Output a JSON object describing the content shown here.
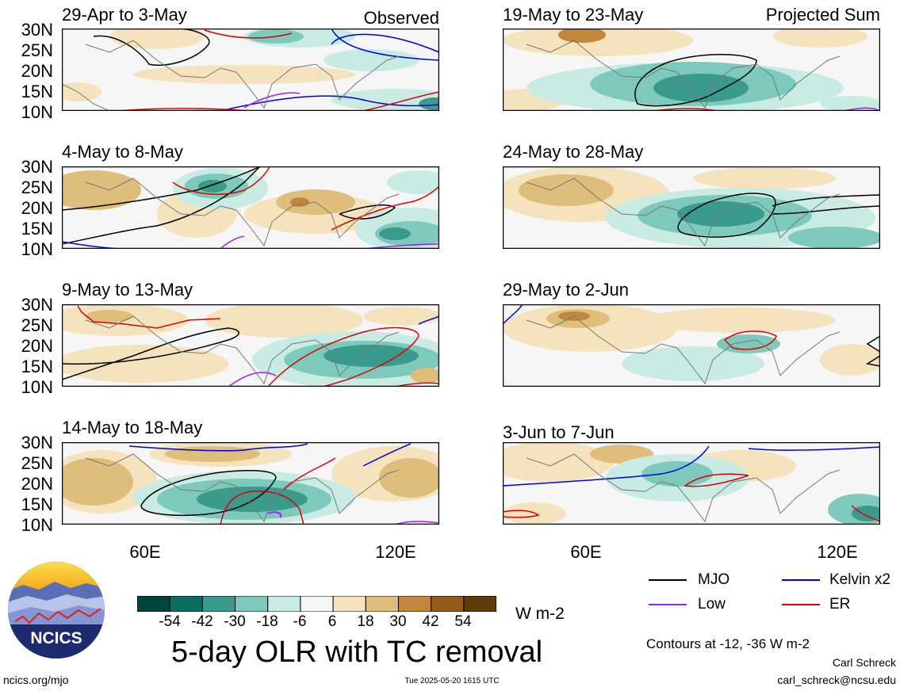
{
  "panels": [
    {
      "title": "29-Apr to 3-May",
      "tag": "Observed"
    },
    {
      "title": "4-May to 8-May",
      "tag": ""
    },
    {
      "title": "9-May to 13-May",
      "tag": ""
    },
    {
      "title": "14-May to 18-May",
      "tag": ""
    },
    {
      "title": "19-May to 23-May",
      "tag": "Projected Sum"
    },
    {
      "title": "24-May to 28-May",
      "tag": ""
    },
    {
      "title": "29-May to 2-Jun",
      "tag": ""
    },
    {
      "title": "3-Jun to 7-Jun",
      "tag": ""
    }
  ],
  "lat_labels": [
    "30N",
    "25N",
    "20N",
    "15N",
    "10N"
  ],
  "lon_labels": [
    "60E",
    "120E"
  ],
  "colorbar": {
    "ticks": [
      "-54",
      "-42",
      "-30",
      "-18",
      "-6",
      "6",
      "18",
      "30",
      "42",
      "54"
    ],
    "colors": [
      "#00463d",
      "#0b6e62",
      "#3a9a8c",
      "#7dcabd",
      "#c8ece4",
      "#f6f6f6",
      "#f4e3bd",
      "#dfbd7a",
      "#c2873a",
      "#965b18",
      "#603c08"
    ],
    "units": "W m-2"
  },
  "main_title": "5-day OLR with TC removal",
  "legend": [
    {
      "label": "MJO",
      "color": "#000000"
    },
    {
      "label": "Kelvin x2",
      "color": "#0000dd"
    },
    {
      "label": "Low",
      "color": "#a020f0"
    },
    {
      "label": "ER",
      "color": "#e00000"
    }
  ],
  "contours_note": "Contours at -12, -36 W m-2",
  "author": "Carl Schreck",
  "email": "carl_schreck@ncsu.edu",
  "site": "ncics.org/mjo",
  "timestamp": "Tue 2025-05-20 1615 UTC",
  "logo_text": "NCICS"
}
